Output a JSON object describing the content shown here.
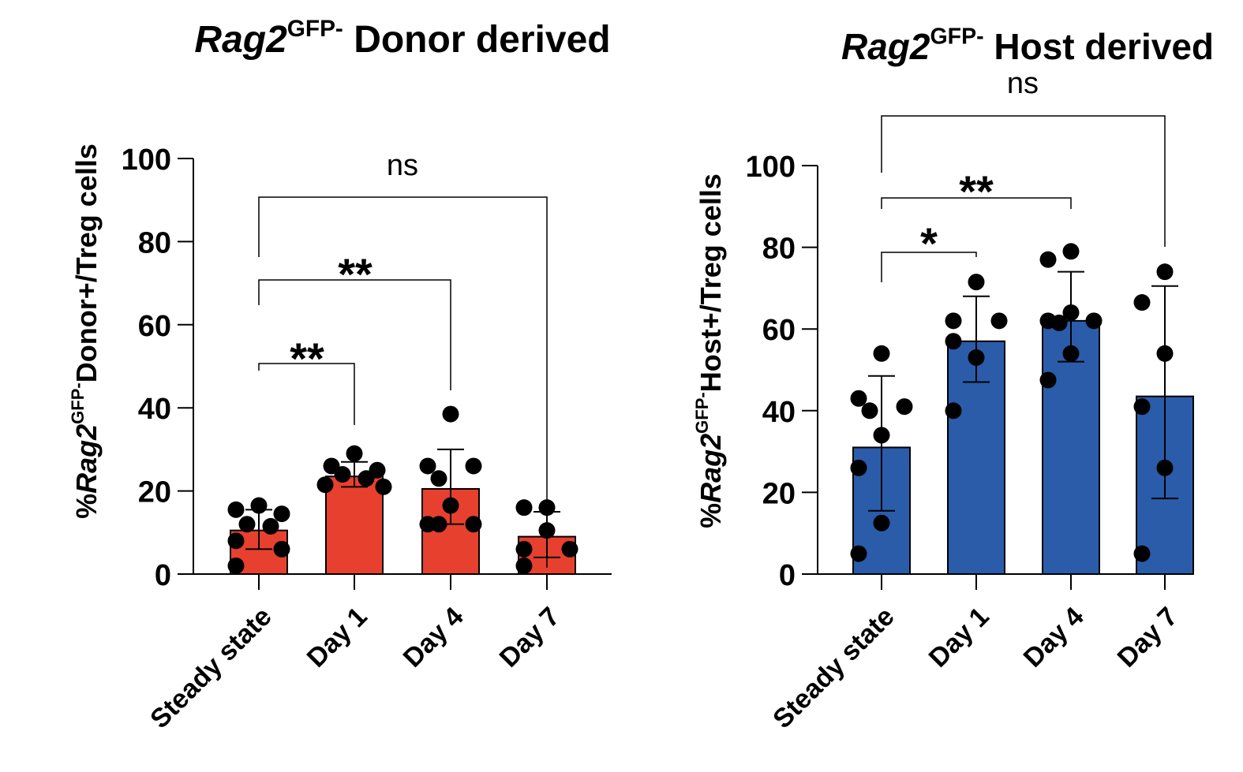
{
  "chart_data": [
    {
      "type": "bar",
      "title": "Rag2GFP- Donor derived",
      "title_parts": {
        "gene": "Rag2",
        "sup": "GFP-",
        "rest": " Donor derived"
      },
      "ylabel_parts": {
        "pre": "%",
        "gene": "Rag2",
        "sup": "GFP-",
        "rest": "Donor+/Treg cells"
      },
      "ylabel": "%Rag2GFP-Donor+/Treg cells",
      "categories": [
        "Steady state",
        "Day 1",
        "Day 4",
        "Day 7"
      ],
      "values": [
        10.5,
        23.5,
        20.5,
        9
      ],
      "error": [
        [
          6,
          15.5
        ],
        [
          21,
          27
        ],
        [
          12,
          30
        ],
        [
          4,
          15
        ]
      ],
      "points": [
        [
          16.5,
          15.5,
          14.5,
          12,
          11.5,
          8,
          6,
          2
        ],
        [
          29,
          26,
          25,
          24,
          23,
          21.5,
          21
        ],
        [
          38.5,
          26,
          26,
          23,
          16.5,
          12,
          12,
          12
        ],
        [
          16,
          16,
          10.5,
          6,
          6,
          2
        ]
      ],
      "ylim": [
        0,
        100
      ],
      "yticks": [
        0,
        20,
        40,
        60,
        80,
        100
      ],
      "ytick_labels": [
        "0",
        "20",
        "40",
        "60",
        "80",
        "100"
      ],
      "bar_color": "#e8402f",
      "comparisons": [
        {
          "from": "Steady state",
          "to": "Day 1",
          "label": "**"
        },
        {
          "from": "Steady state",
          "to": "Day 4",
          "label": "**"
        },
        {
          "from": "Steady state",
          "to": "Day 7",
          "label": "ns"
        }
      ]
    },
    {
      "type": "bar",
      "title": "Rag2GFP- Host derived",
      "title_parts": {
        "gene": "Rag2",
        "sup": "GFP-",
        "rest": " Host derived"
      },
      "ylabel_parts": {
        "pre": "%",
        "gene": "Rag2",
        "sup": "GFP-",
        "rest": "Host+/Treg cells"
      },
      "ylabel": "%Rag2GFP-Host+/Treg cells",
      "categories": [
        "Steady state",
        "Day 1",
        "Day 4",
        "Day 7"
      ],
      "values": [
        31,
        57,
        62,
        43.5
      ],
      "error": [
        [
          15.5,
          48.5
        ],
        [
          47,
          68
        ],
        [
          52,
          74
        ],
        [
          18.5,
          70.5
        ]
      ],
      "points": [
        [
          54,
          43,
          41,
          40,
          34,
          26,
          12.5,
          5
        ],
        [
          71.5,
          62,
          62,
          57,
          53,
          40
        ],
        [
          79,
          77,
          64,
          62,
          62,
          61.5,
          54,
          47.5
        ],
        [
          74,
          66.5,
          54,
          41,
          26,
          5
        ]
      ],
      "ylim": [
        0,
        100
      ],
      "yticks": [
        0,
        20,
        40,
        60,
        80,
        100
      ],
      "ytick_labels": [
        "0",
        "20",
        "40",
        "60",
        "80",
        "100"
      ],
      "bar_color": "#2a5caa",
      "comparisons": [
        {
          "from": "Steady state",
          "to": "Day 1",
          "label": "*"
        },
        {
          "from": "Steady state",
          "to": "Day 4",
          "label": "**"
        },
        {
          "from": "Steady state",
          "to": "Day 7",
          "label": "ns"
        }
      ]
    }
  ]
}
